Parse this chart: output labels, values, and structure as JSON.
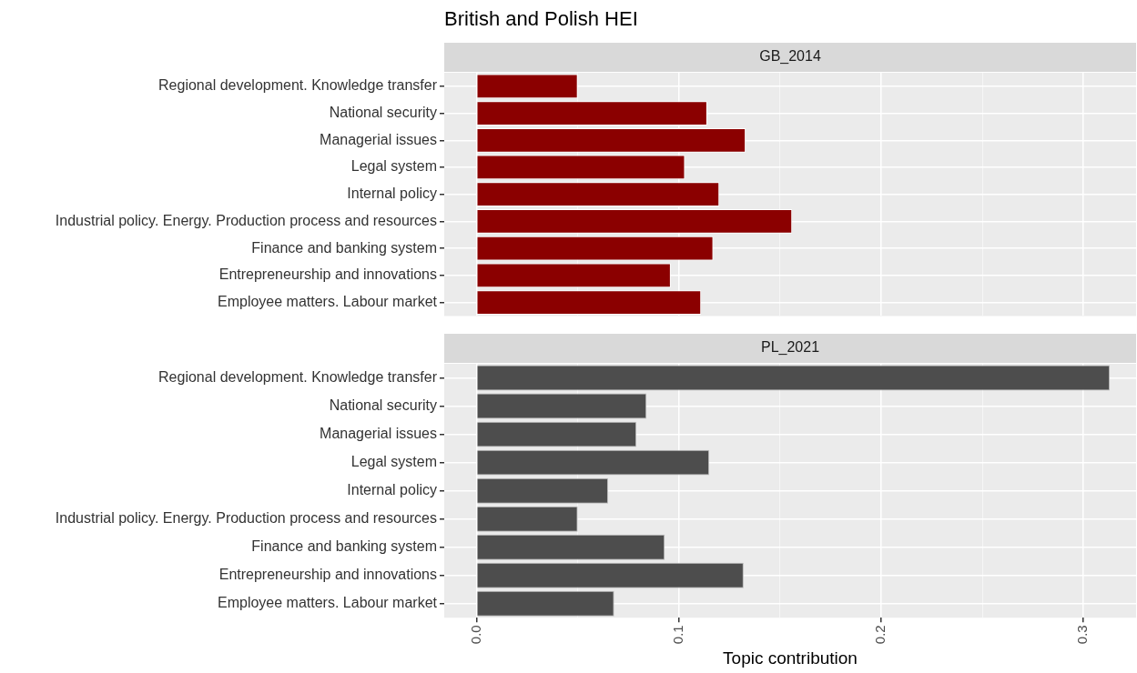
{
  "chart_data": [
    {
      "type": "bar",
      "title": "British and Polish HEI",
      "subtitle": "GB_2014",
      "orientation": "horizontal",
      "categories": [
        "Regional development. Knowledge transfer",
        "National security",
        "Managerial issues",
        "Legal system",
        "Internal policy",
        "Industrial policy. Energy. Production process and resources",
        "Finance and banking system",
        "Entrepreneurship and innovations",
        "Employee matters. Labour market"
      ],
      "values": [
        0.05,
        0.114,
        0.133,
        0.103,
        0.12,
        0.156,
        0.117,
        0.096,
        0.111
      ],
      "color": "#8b0000",
      "xlim": [
        -0.016,
        0.326
      ],
      "xticks": [
        {
          "value": 0.0,
          "label": null
        },
        {
          "value": 0.05,
          "label": null
        },
        {
          "value": 0.1,
          "label": null
        },
        {
          "value": 0.15,
          "label": null
        },
        {
          "value": 0.2,
          "label": null
        },
        {
          "value": 0.25,
          "label": null
        },
        {
          "value": 0.3,
          "label": null
        }
      ],
      "tick_labels": "y",
      "grid": true,
      "legend": false
    },
    {
      "type": "bar",
      "subtitle": "PL_2021",
      "xlabel": "Topic contribution",
      "orientation": "horizontal",
      "categories": [
        "Regional development. Knowledge transfer",
        "National security",
        "Managerial issues",
        "Legal system",
        "Internal policy",
        "Industrial policy. Energy. Production process and resources",
        "Finance and banking system",
        "Entrepreneurship and innovations",
        "Employee matters. Labour market"
      ],
      "values": [
        0.313,
        0.084,
        0.079,
        0.115,
        0.065,
        0.05,
        0.093,
        0.132,
        0.068
      ],
      "color": "#4d4d4d",
      "xlim": [
        -0.016,
        0.326
      ],
      "xticks": [
        {
          "value": 0.0,
          "label": "0.0"
        },
        {
          "value": 0.05,
          "label": null
        },
        {
          "value": 0.1,
          "label": "0.1"
        },
        {
          "value": 0.15,
          "label": null
        },
        {
          "value": 0.2,
          "label": "0.2"
        },
        {
          "value": 0.25,
          "label": null
        },
        {
          "value": 0.3,
          "label": "0.3"
        }
      ],
      "grid": true,
      "legend": false
    }
  ]
}
